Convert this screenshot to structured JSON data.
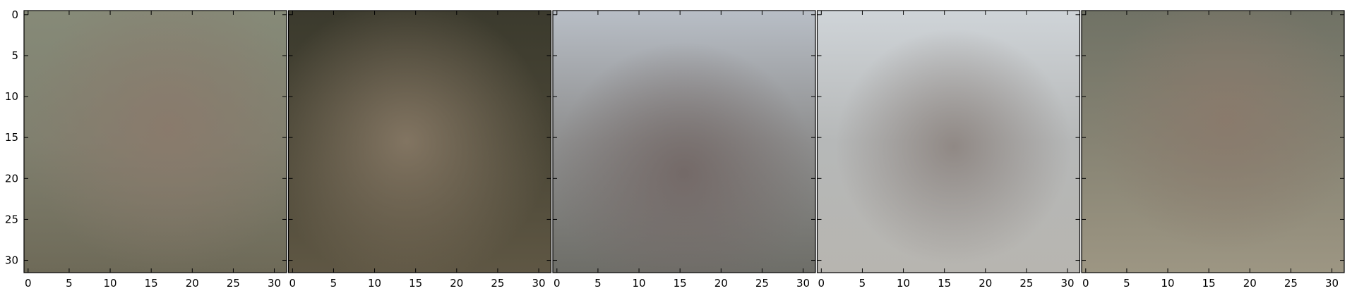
{
  "chart_data": {
    "type": "heatmap",
    "panel_count": 5,
    "x_ticks": [
      "0",
      "5",
      "10",
      "15",
      "20",
      "25",
      "30"
    ],
    "y_ticks": [
      "0",
      "5",
      "10",
      "15",
      "20",
      "25",
      "30"
    ],
    "xlim": [
      -0.5,
      31.5
    ],
    "ylim": [
      31.5,
      -0.5
    ],
    "y_axis_inverted": true,
    "grid": false,
    "panels": [
      {
        "name": "image-1",
        "background": "#80806f",
        "glow": {
          "center": [
            0.55,
            0.45
          ],
          "radius": 0.55,
          "color": "#8a7a6c"
        },
        "top": "#868a78",
        "bottom": "#6e6a58"
      },
      {
        "name": "image-2",
        "background": "#4a4636",
        "glow": {
          "center": [
            0.45,
            0.5
          ],
          "radius": 0.55,
          "color": "#857764"
        },
        "top": "#3b3a2d",
        "bottom": "#5f5744"
      },
      {
        "name": "image-3",
        "background": "#8e8e8e",
        "glow": {
          "center": [
            0.5,
            0.62
          ],
          "radius": 0.5,
          "color": "#736866"
        },
        "top": "#b8bec6",
        "bottom": "#6e6e68"
      },
      {
        "name": "image-4",
        "background": "#b6b8b8",
        "glow": {
          "center": [
            0.52,
            0.52
          ],
          "radius": 0.45,
          "color": "#8e8682"
        },
        "top": "#cfd4d8",
        "bottom": "#b7b5b0"
      },
      {
        "name": "image-5",
        "background": "#868373",
        "glow": {
          "center": [
            0.55,
            0.42
          ],
          "radius": 0.5,
          "color": "#8a7a6c"
        },
        "top": "#707265",
        "bottom": "#9d9683"
      }
    ]
  }
}
